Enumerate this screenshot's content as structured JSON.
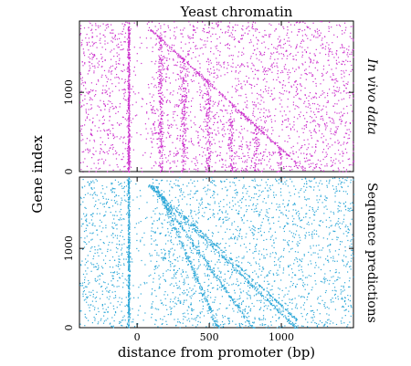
{
  "chart_data": {
    "type": "scatter",
    "title": "Yeast chromatin",
    "xlabel": "distance from promoter (bp)",
    "ylabel": "Gene index",
    "xlim": [
      -400,
      1500
    ],
    "x_ticks": [
      "0",
      "500",
      "1000"
    ],
    "x_tick_values": [
      0,
      500,
      1000
    ],
    "y_ticks": [
      "0",
      "1000"
    ],
    "y_tick_values": [
      0,
      1000
    ],
    "grid": false,
    "panels": [
      {
        "name": "In vivo data",
        "color": "#cc33cc",
        "ylim": [
          0,
          1900
        ],
        "features": {
          "nfr_left_x": -60,
          "nfr_right_x": 30,
          "nucleosome_peaks_x": [
            160,
            320,
            490,
            650,
            820,
            985,
            1150
          ],
          "gene_end_line": [
            [
              90,
              1800
            ],
            [
              1120,
              80
            ]
          ]
        }
      },
      {
        "name": "Sequence predictions",
        "color": "#2fa8d8",
        "ylim": [
          0,
          1900
        ],
        "features": {
          "nfr_left_x": -60,
          "nfr_right_x": 30,
          "diagonal_bands": [
            [
              [
                80,
                1800
              ],
              [
                1100,
                0
              ]
            ],
            [
              [
                130,
                1800
              ],
              [
                560,
                0
              ]
            ],
            [
              [
                100,
                1800
              ],
              [
                800,
                0
              ]
            ]
          ],
          "gene_end_line": [
            [
              90,
              1800
            ],
            [
              1120,
              80
            ]
          ]
        }
      }
    ]
  }
}
